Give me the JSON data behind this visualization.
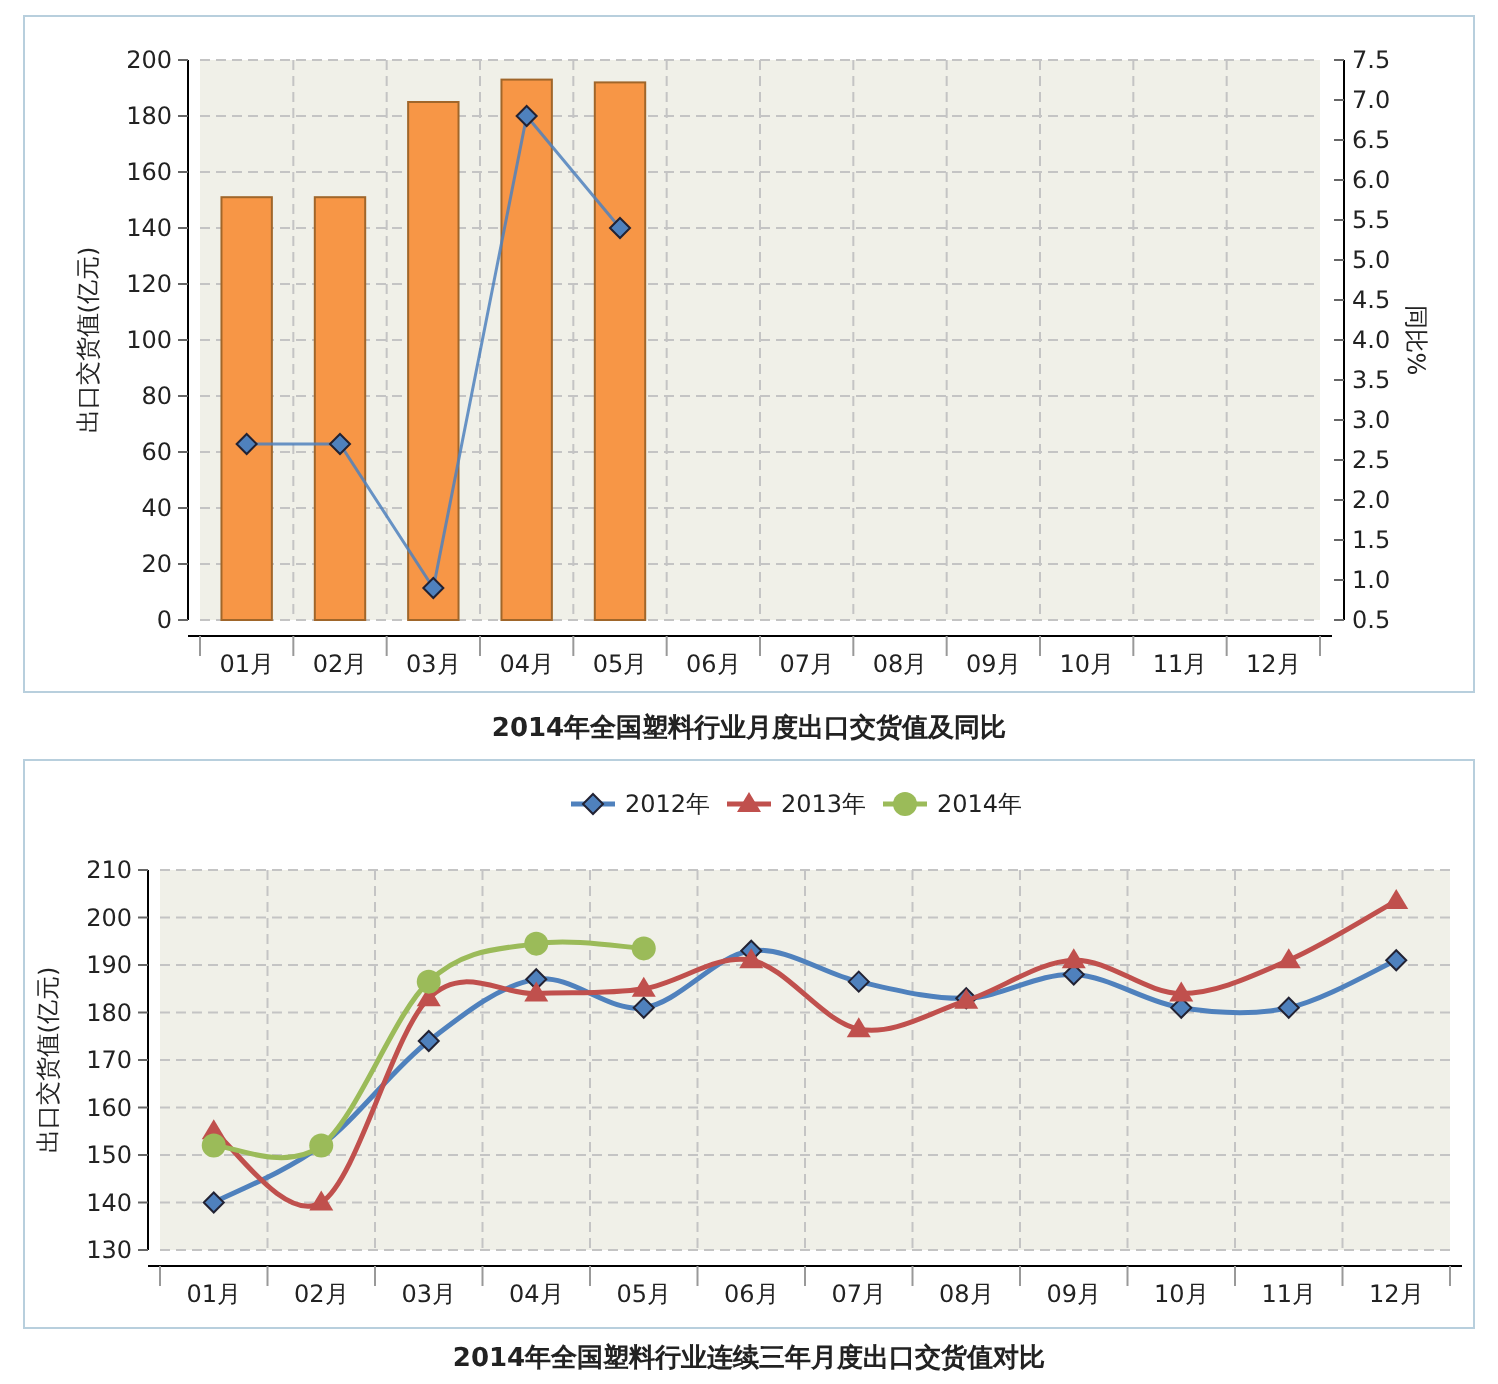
{
  "chart_data": [
    {
      "type": "bar",
      "title": "2014年全国塑料行业月度出口交货值及同比",
      "ylabel": "出口交货值(亿元)",
      "y2label": "同比%",
      "categories": [
        "01月",
        "02月",
        "03月",
        "04月",
        "05月",
        "06月",
        "07月",
        "08月",
        "09月",
        "10月",
        "11月",
        "12月"
      ],
      "series": [
        {
          "type": "bar",
          "color": "#f79646",
          "values": [
            151,
            151,
            185,
            193,
            192,
            null,
            null,
            null,
            null,
            null,
            null,
            null
          ]
        },
        {
          "type": "line",
          "axis": "y2",
          "color": "#4f81bd",
          "marker": "diamond",
          "values": [
            2.7,
            2.7,
            0.9,
            6.8,
            5.4,
            null,
            null,
            null,
            null,
            null,
            null,
            null
          ]
        }
      ],
      "ylim": [
        0,
        200
      ],
      "yticks": [
        0,
        20,
        40,
        60,
        80,
        100,
        120,
        140,
        160,
        180,
        200
      ],
      "y2lim": [
        0.5,
        7.5
      ],
      "y2ticks": [
        0.5,
        {
          "value": 1,
          "label": "1.0"
        },
        1.5,
        {
          "value": 2,
          "label": "2.0"
        },
        2.5,
        {
          "value": 3,
          "label": "3.0"
        },
        3.5,
        {
          "value": 4,
          "label": "4.0"
        },
        4.5,
        {
          "value": 5,
          "label": "5.0"
        },
        5.5,
        {
          "value": 6,
          "label": "6.0"
        },
        6.5,
        {
          "value": 7,
          "label": "7.0"
        },
        7.5
      ],
      "grid": true
    },
    {
      "type": "line",
      "title": "2014年全国塑料行业连续三年月度出口交货值对比",
      "ylabel": "出口交货值(亿元)",
      "categories": [
        "01月",
        "02月",
        "03月",
        "04月",
        "05月",
        "06月",
        "07月",
        "08月",
        "09月",
        "10月",
        "11月",
        "12月"
      ],
      "series": [
        {
          "name": "2012年",
          "color": "#4f81bd",
          "marker": "diamond",
          "values": [
            140,
            152,
            174,
            187,
            181,
            193,
            186.5,
            183,
            188,
            181,
            181,
            191
          ]
        },
        {
          "name": "2013年",
          "color": "#c0504d",
          "marker": "triangle",
          "values": [
            155,
            140,
            183,
            184,
            185,
            191,
            176.5,
            182.5,
            191,
            184,
            191,
            203.5
          ]
        },
        {
          "name": "2014年",
          "color": "#9bbb59",
          "marker": "circle",
          "values": [
            152,
            152,
            186.5,
            194.5,
            193.5,
            null,
            null,
            null,
            null,
            null,
            null,
            null
          ]
        }
      ],
      "ylim": [
        130,
        210
      ],
      "yticks": [
        130,
        140,
        150,
        160,
        170,
        180,
        190,
        200,
        210
      ],
      "grid": true,
      "legend": "top"
    }
  ]
}
